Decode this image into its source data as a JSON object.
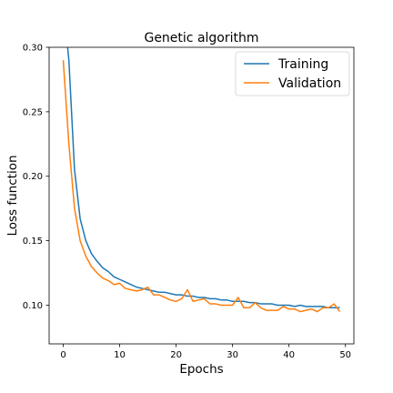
{
  "chart_data": {
    "type": "line",
    "title": "Genetic algorithm",
    "xlabel": "Epochs",
    "ylabel": "Loss function",
    "xlim": [
      -2.5,
      51.5
    ],
    "ylim": [
      0.07,
      0.3
    ],
    "xticks": [
      0,
      10,
      20,
      30,
      40,
      50
    ],
    "yticks": [
      0.1,
      0.15,
      0.2,
      0.25,
      0.3
    ],
    "ytick_labels": [
      "0.10",
      "0.15",
      "0.20",
      "0.25",
      "0.30"
    ],
    "legend_position": "top-right",
    "x": [
      0,
      1,
      2,
      3,
      4,
      5,
      6,
      7,
      8,
      9,
      10,
      11,
      12,
      13,
      14,
      15,
      16,
      17,
      18,
      19,
      20,
      21,
      22,
      23,
      24,
      25,
      26,
      27,
      28,
      29,
      30,
      31,
      32,
      33,
      34,
      35,
      36,
      37,
      38,
      39,
      40,
      41,
      42,
      43,
      44,
      45,
      46,
      47,
      48,
      49
    ],
    "series": [
      {
        "name": "Training",
        "color": "#1f77b4",
        "values": [
          0.335,
          0.29,
          0.205,
          0.167,
          0.15,
          0.14,
          0.134,
          0.129,
          0.126,
          0.122,
          0.12,
          0.118,
          0.116,
          0.114,
          0.113,
          0.112,
          0.111,
          0.11,
          0.11,
          0.109,
          0.108,
          0.108,
          0.107,
          0.107,
          0.106,
          0.106,
          0.105,
          0.105,
          0.104,
          0.104,
          0.103,
          0.103,
          0.103,
          0.102,
          0.102,
          0.101,
          0.101,
          0.101,
          0.1,
          0.1,
          0.1,
          0.099,
          0.1,
          0.099,
          0.099,
          0.099,
          0.099,
          0.098,
          0.098,
          0.098
        ]
      },
      {
        "name": "Validation",
        "color": "#ff7f0e",
        "values": [
          0.29,
          0.225,
          0.175,
          0.15,
          0.138,
          0.13,
          0.125,
          0.121,
          0.119,
          0.116,
          0.117,
          0.113,
          0.112,
          0.111,
          0.112,
          0.114,
          0.108,
          0.108,
          0.106,
          0.104,
          0.103,
          0.105,
          0.112,
          0.103,
          0.104,
          0.105,
          0.101,
          0.101,
          0.1,
          0.1,
          0.1,
          0.106,
          0.098,
          0.098,
          0.102,
          0.098,
          0.096,
          0.096,
          0.096,
          0.099,
          0.097,
          0.097,
          0.095,
          0.096,
          0.097,
          0.095,
          0.098,
          0.098,
          0.101,
          0.095
        ]
      }
    ]
  }
}
